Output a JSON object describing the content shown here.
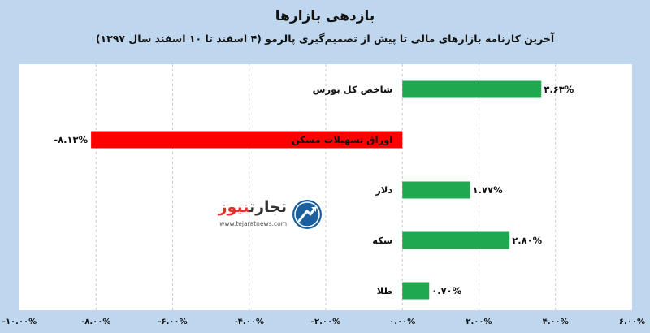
{
  "chart_data": {
    "type": "bar",
    "orientation": "horizontal",
    "title": "بازدهی بازارها",
    "subtitle": "آخرین کارنامه بازارهای مالی تا پیش از تصمیم‌گیری پالرمو (۴ اسفند تا ۱۰ اسفند سال ۱۳۹۷)",
    "categories": [
      "شاخص کل بورس",
      "اوراق تسهیلات مسکن",
      "دلار",
      "سکه",
      "طلا"
    ],
    "values": [
      3.63,
      -8.13,
      1.77,
      2.8,
      0.7
    ],
    "value_labels": [
      "۳.۶۳%",
      "-۸.۱۳%",
      "۱.۷۷%",
      "۲.۸۰%",
      "۰.۷۰%"
    ],
    "xlim": [
      -10,
      6
    ],
    "ticks": [
      -10,
      -8,
      -6,
      -4,
      -2,
      0,
      2,
      4,
      6
    ],
    "tick_labels": [
      "-۱۰.۰۰%",
      "-۸.۰۰%",
      "-۶.۰۰%",
      "-۴.۰۰%",
      "-۲.۰۰%",
      "۰.۰۰%",
      "۲.۰۰%",
      "۴.۰۰%",
      "۶.۰۰%"
    ],
    "grid": "vertical-dashed",
    "colors": {
      "positive": "#1fa84f",
      "negative": "#ff0000",
      "grid": "#c9c9c9"
    }
  },
  "logo": {
    "name_part1": "تجارت",
    "name_part2": "نیوز",
    "url": "www.tejaratnews.com",
    "icon": "upward-arrow-circle-icon"
  }
}
